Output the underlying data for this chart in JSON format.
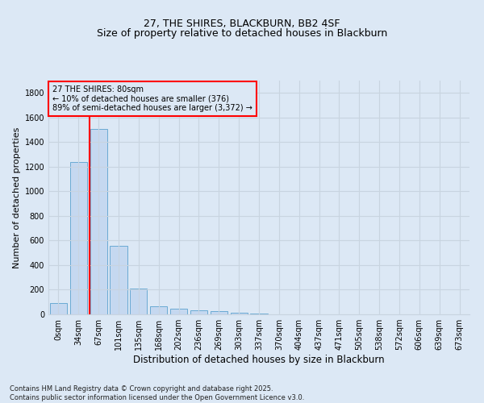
{
  "title": "27, THE SHIRES, BLACKBURN, BB2 4SF",
  "subtitle": "Size of property relative to detached houses in Blackburn",
  "xlabel": "Distribution of detached houses by size in Blackburn",
  "ylabel": "Number of detached properties",
  "categories": [
    "0sqm",
    "34sqm",
    "67sqm",
    "101sqm",
    "135sqm",
    "168sqm",
    "202sqm",
    "236sqm",
    "269sqm",
    "303sqm",
    "337sqm",
    "370sqm",
    "404sqm",
    "437sqm",
    "471sqm",
    "505sqm",
    "538sqm",
    "572sqm",
    "606sqm",
    "639sqm",
    "673sqm"
  ],
  "values": [
    90,
    1240,
    1510,
    560,
    210,
    65,
    48,
    35,
    28,
    15,
    8,
    3,
    0,
    0,
    0,
    0,
    0,
    0,
    0,
    0,
    0
  ],
  "bar_color": "#c5d8f0",
  "bar_edge_color": "#6aaad4",
  "grid_color": "#c8d4e0",
  "bg_color": "#dce8f5",
  "vline_x": 1.57,
  "vline_color": "red",
  "annotation_text": "27 THE SHIRES: 80sqm\n← 10% of detached houses are smaller (376)\n89% of semi-detached houses are larger (3,372) →",
  "annotation_box_color": "red",
  "footer": "Contains HM Land Registry data © Crown copyright and database right 2025.\nContains public sector information licensed under the Open Government Licence v3.0.",
  "ylim": [
    0,
    1900
  ],
  "yticks": [
    0,
    200,
    400,
    600,
    800,
    1000,
    1200,
    1400,
    1600,
    1800
  ],
  "title_fontsize": 9,
  "subtitle_fontsize": 9,
  "ylabel_fontsize": 8,
  "xlabel_fontsize": 8.5,
  "tick_fontsize": 7,
  "footer_fontsize": 6,
  "annot_fontsize": 7
}
